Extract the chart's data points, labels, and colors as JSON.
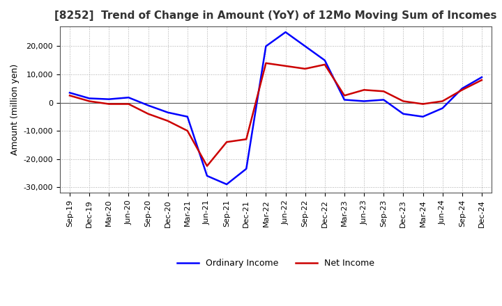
{
  "title": "[8252]  Trend of Change in Amount (YoY) of 12Mo Moving Sum of Incomes",
  "ylabel": "Amount (million yen)",
  "ylim": [
    -32000,
    27000
  ],
  "yticks": [
    -30000,
    -20000,
    -10000,
    0,
    10000,
    20000
  ],
  "background_color": "#ffffff",
  "grid_color": "#aaaaaa",
  "x_labels": [
    "Sep-19",
    "Dec-19",
    "Mar-20",
    "Jun-20",
    "Sep-20",
    "Dec-20",
    "Mar-21",
    "Jun-21",
    "Sep-21",
    "Dec-21",
    "Mar-22",
    "Jun-22",
    "Sep-22",
    "Dec-22",
    "Mar-23",
    "Jun-23",
    "Sep-23",
    "Dec-23",
    "Mar-24",
    "Jun-24",
    "Sep-24",
    "Dec-24"
  ],
  "ordinary_income": [
    3500,
    1500,
    1200,
    1800,
    -1000,
    -3500,
    -5000,
    -26000,
    -29000,
    -23500,
    20000,
    25000,
    20000,
    15000,
    1000,
    500,
    1000,
    -4000,
    -5000,
    -2000,
    5000,
    9000
  ],
  "net_income": [
    2500,
    500,
    -500,
    -500,
    -4000,
    -6500,
    -10000,
    -22500,
    -14000,
    -13000,
    14000,
    13000,
    12000,
    13500,
    2500,
    4500,
    4000,
    500,
    -500,
    500,
    4500,
    8000
  ],
  "ordinary_color": "#0000ff",
  "net_color": "#cc0000",
  "line_width": 1.8,
  "legend_labels": [
    "Ordinary Income",
    "Net Income"
  ]
}
